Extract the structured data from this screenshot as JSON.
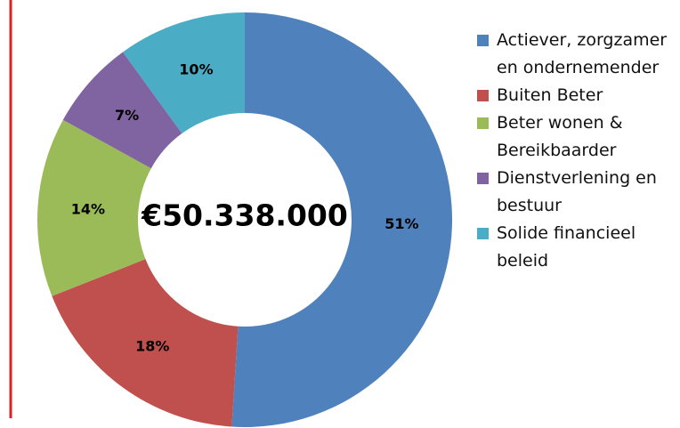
{
  "chart_data": {
    "type": "donut",
    "center_label": "€50.338.000",
    "categories": [
      "Actiever, zorgzamer en ondernemender",
      "Buiten Beter",
      "Beter wonen & Bereikbaarder",
      "Dienstverlening en bestuur",
      "Solide financieel beleid"
    ],
    "values": [
      51,
      18,
      14,
      7,
      10
    ],
    "value_labels": [
      "51%",
      "18%",
      "14%",
      "7%",
      "10%"
    ],
    "colors": [
      "#4f81bd",
      "#c0504d",
      "#9bbb59",
      "#8064a2",
      "#4bacc6"
    ],
    "legend": "right"
  }
}
